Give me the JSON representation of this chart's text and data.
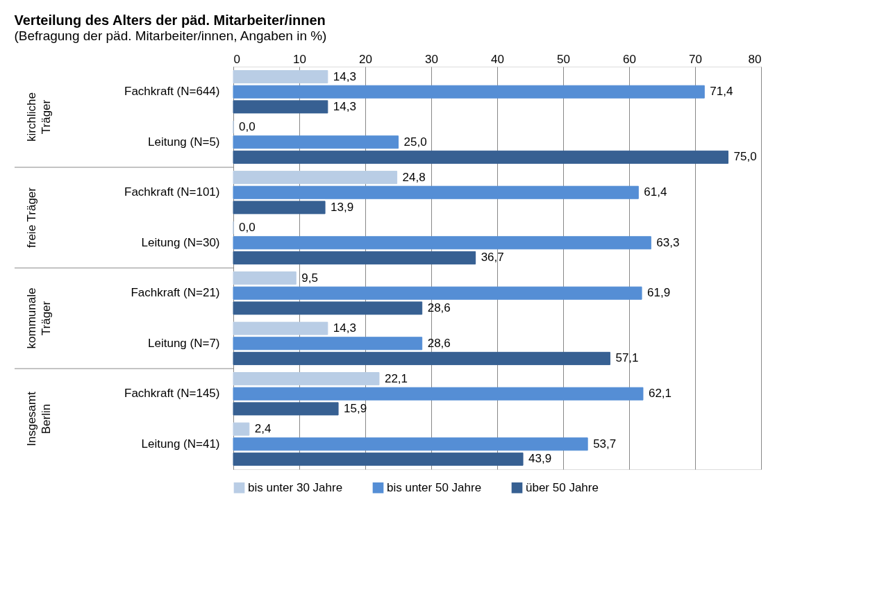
{
  "chart_data": {
    "type": "bar",
    "orientation": "horizontal",
    "title": "Verteilung des Alters der päd. Mitarbeiter/innen",
    "subtitle": "(Befragung der päd. Mitarbeiter/innen, Angaben in %)",
    "categories": [
      "Fachkraft (N=644)",
      "Leitung (N=5)",
      "Fachkraft (N=101)",
      "Leitung (N=30)",
      "Fachkraft (N=21)",
      "Leitung (N=7)",
      "Fachkraft (N=145)",
      "Leitung (N=41)"
    ],
    "annotations": [
      "kirchliche Träger",
      "freie Träger",
      "kommunale Träger",
      "Insgesamt Berlin"
    ],
    "series": [
      {
        "name": "bis unter 30 Jahre",
        "color": "#b9cde5",
        "values": [
          14.3,
          0.0,
          24.8,
          0.0,
          9.5,
          14.3,
          22.1,
          2.4
        ],
        "value_labels": [
          "14,3",
          "0,0",
          "24,8",
          "0,0",
          "9,5",
          "14,3",
          "22,1",
          "2,4"
        ]
      },
      {
        "name": "bis unter 50 Jahre",
        "color": "#558ed5",
        "values": [
          71.4,
          25.0,
          61.4,
          63.3,
          61.9,
          28.6,
          62.1,
          53.7
        ],
        "value_labels": [
          "71,4",
          "25,0",
          "61,4",
          "63,3",
          "61,9",
          "28,6",
          "62,1",
          "53,7"
        ]
      },
      {
        "name": "über 50 Jahre",
        "color": "#376092",
        "values": [
          14.3,
          75.0,
          13.9,
          36.7,
          28.6,
          57.1,
          15.9,
          43.9
        ],
        "value_labels": [
          "14,3",
          "75,0",
          "13,9",
          "36,7",
          "28,6",
          "57,1",
          "15,9",
          "43,9"
        ]
      }
    ],
    "xlim": [
      0,
      80
    ],
    "xticks": [
      0,
      10,
      20,
      30,
      40,
      50,
      60,
      70,
      80
    ],
    "grid": "x",
    "legend": "bottom"
  }
}
